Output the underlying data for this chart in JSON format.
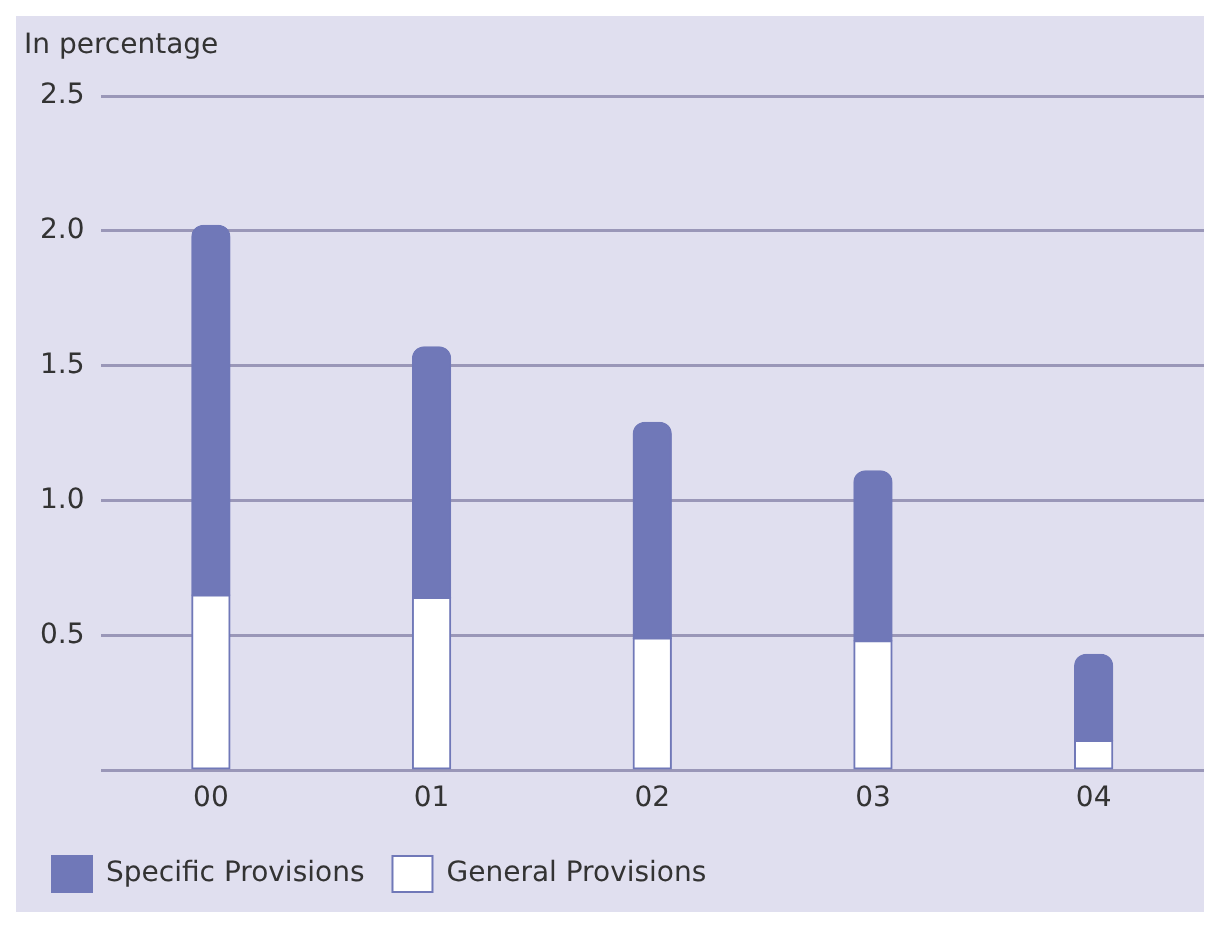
{
  "chart_data": {
    "type": "bar",
    "ylabel": "In percentage",
    "categories": [
      "00",
      "01",
      "02",
      "03",
      "04"
    ],
    "stacked": true,
    "series": [
      {
        "name": "General Provisions",
        "color": "#ffffff",
        "values": [
          0.65,
          0.64,
          0.49,
          0.48,
          0.11
        ]
      },
      {
        "name": "Specific Provisions",
        "color": "#7078b8",
        "values": [
          1.37,
          0.93,
          0.8,
          0.63,
          0.32
        ]
      }
    ],
    "ylim": [
      0,
      2.5
    ],
    "yticks": [
      {
        "value": 0,
        "label": null
      },
      0.5,
      {
        "value": 1,
        "label": "1.0"
      },
      1.5,
      {
        "value": 2,
        "label": "2.0"
      },
      2.5
    ],
    "grid": "y",
    "legend": "bottom left"
  }
}
